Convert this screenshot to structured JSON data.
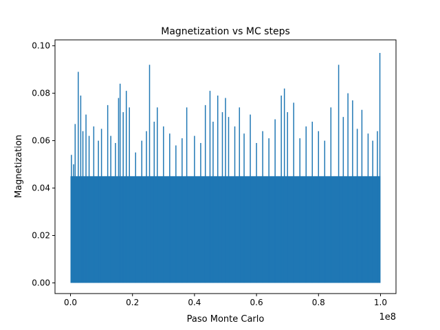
{
  "chart_data": {
    "type": "line",
    "title": "Magnetization vs MC steps",
    "xlabel": "Paso Monte Carlo",
    "ylabel": "Magnetization",
    "x_offset_label": "1e8",
    "xlim": [
      -0.05,
      1.05
    ],
    "ylim": [
      -0.0045,
      0.1025
    ],
    "x_ticks": [
      0.0,
      0.2,
      0.4,
      0.6,
      0.8,
      1.0
    ],
    "x_tick_labels": [
      "0.0",
      "0.2",
      "0.4",
      "0.6",
      "0.8",
      "1.0"
    ],
    "y_ticks": [
      0.0,
      0.02,
      0.04,
      0.06,
      0.08,
      0.1
    ],
    "y_tick_labels": [
      "0.00",
      "0.02",
      "0.04",
      "0.06",
      "0.08",
      "0.10"
    ],
    "grid": false,
    "legend": "none",
    "colors": {
      "series": "#1f77b4",
      "axes": "#000000"
    },
    "series": [
      {
        "band_max": 0.045,
        "band_min": 0.0,
        "peaks": [
          {
            "x": 0.003,
            "y": 0.054
          },
          {
            "x": 0.01,
            "y": 0.05
          },
          {
            "x": 0.015,
            "y": 0.067
          },
          {
            "x": 0.025,
            "y": 0.089
          },
          {
            "x": 0.033,
            "y": 0.079
          },
          {
            "x": 0.04,
            "y": 0.064
          },
          {
            "x": 0.05,
            "y": 0.071
          },
          {
            "x": 0.06,
            "y": 0.062
          },
          {
            "x": 0.075,
            "y": 0.066
          },
          {
            "x": 0.09,
            "y": 0.06
          },
          {
            "x": 0.1,
            "y": 0.065
          },
          {
            "x": 0.12,
            "y": 0.075
          },
          {
            "x": 0.13,
            "y": 0.062
          },
          {
            "x": 0.145,
            "y": 0.059
          },
          {
            "x": 0.155,
            "y": 0.078
          },
          {
            "x": 0.16,
            "y": 0.084
          },
          {
            "x": 0.17,
            "y": 0.072
          },
          {
            "x": 0.18,
            "y": 0.081
          },
          {
            "x": 0.19,
            "y": 0.074
          },
          {
            "x": 0.21,
            "y": 0.055
          },
          {
            "x": 0.23,
            "y": 0.06
          },
          {
            "x": 0.245,
            "y": 0.064
          },
          {
            "x": 0.255,
            "y": 0.092
          },
          {
            "x": 0.27,
            "y": 0.068
          },
          {
            "x": 0.28,
            "y": 0.074
          },
          {
            "x": 0.3,
            "y": 0.066
          },
          {
            "x": 0.32,
            "y": 0.063
          },
          {
            "x": 0.34,
            "y": 0.058
          },
          {
            "x": 0.36,
            "y": 0.061
          },
          {
            "x": 0.375,
            "y": 0.074
          },
          {
            "x": 0.4,
            "y": 0.062
          },
          {
            "x": 0.42,
            "y": 0.059
          },
          {
            "x": 0.435,
            "y": 0.075
          },
          {
            "x": 0.45,
            "y": 0.081
          },
          {
            "x": 0.46,
            "y": 0.068
          },
          {
            "x": 0.475,
            "y": 0.079
          },
          {
            "x": 0.49,
            "y": 0.072
          },
          {
            "x": 0.5,
            "y": 0.078
          },
          {
            "x": 0.51,
            "y": 0.07
          },
          {
            "x": 0.53,
            "y": 0.066
          },
          {
            "x": 0.545,
            "y": 0.074
          },
          {
            "x": 0.56,
            "y": 0.063
          },
          {
            "x": 0.58,
            "y": 0.071
          },
          {
            "x": 0.6,
            "y": 0.059
          },
          {
            "x": 0.62,
            "y": 0.064
          },
          {
            "x": 0.64,
            "y": 0.061
          },
          {
            "x": 0.66,
            "y": 0.069
          },
          {
            "x": 0.68,
            "y": 0.079
          },
          {
            "x": 0.69,
            "y": 0.082
          },
          {
            "x": 0.7,
            "y": 0.072
          },
          {
            "x": 0.72,
            "y": 0.076
          },
          {
            "x": 0.74,
            "y": 0.061
          },
          {
            "x": 0.76,
            "y": 0.066
          },
          {
            "x": 0.78,
            "y": 0.068
          },
          {
            "x": 0.8,
            "y": 0.064
          },
          {
            "x": 0.82,
            "y": 0.06
          },
          {
            "x": 0.84,
            "y": 0.074
          },
          {
            "x": 0.865,
            "y": 0.092
          },
          {
            "x": 0.88,
            "y": 0.07
          },
          {
            "x": 0.895,
            "y": 0.08
          },
          {
            "x": 0.91,
            "y": 0.077
          },
          {
            "x": 0.925,
            "y": 0.065
          },
          {
            "x": 0.94,
            "y": 0.073
          },
          {
            "x": 0.96,
            "y": 0.063
          },
          {
            "x": 0.975,
            "y": 0.06
          },
          {
            "x": 0.99,
            "y": 0.064
          },
          {
            "x": 0.998,
            "y": 0.097
          }
        ]
      }
    ]
  }
}
